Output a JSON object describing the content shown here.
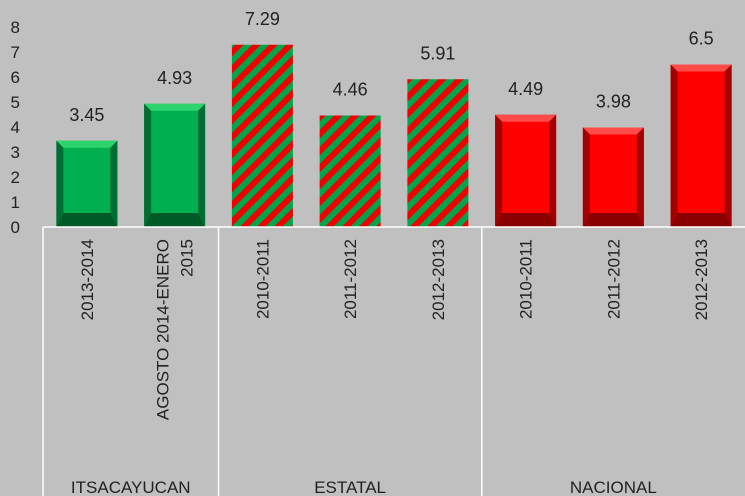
{
  "chart_data": {
    "type": "bar",
    "title": "",
    "xlabel": "",
    "ylabel": "",
    "ylim": [
      0,
      8
    ],
    "yticks": [
      0,
      1,
      2,
      3,
      4,
      5,
      6,
      7,
      8
    ],
    "grid": false,
    "legend": "none",
    "categories": [
      "2013-2014",
      "AGOSTO 2014-ENERO 2015",
      "2010-2011",
      "2011-2012",
      "2012-2013",
      "2010-2011",
      "2011-2012",
      "2012-2013"
    ],
    "category_lines": [
      [
        "2013-2014"
      ],
      [
        "AGOSTO 2014-ENERO",
        "2015"
      ],
      [
        "2010-2011"
      ],
      [
        "2011-2012"
      ],
      [
        "2012-2013"
      ],
      [
        "2010-2011"
      ],
      [
        "2011-2012"
      ],
      [
        "2012-2013"
      ]
    ],
    "groups": [
      {
        "label": "ITSACAYUCAN",
        "start": 0,
        "count": 2
      },
      {
        "label": "ESTATAL",
        "start": 2,
        "count": 3
      },
      {
        "label": "NACIONAL",
        "start": 5,
        "count": 3
      }
    ],
    "values": [
      3.45,
      4.93,
      7.29,
      4.46,
      5.91,
      4.49,
      3.98,
      6.5
    ],
    "value_labels": [
      "3.45",
      "4.93",
      "7.29",
      "4.46",
      "5.91",
      "4.49",
      "3.98",
      "6.5"
    ],
    "styles": [
      "green",
      "green",
      "striped",
      "striped",
      "striped",
      "red",
      "red",
      "red"
    ]
  },
  "colors": {
    "background": "#c0c0c0",
    "green": "#00b050",
    "red": "#ff0000",
    "axis": "#ffffff"
  }
}
